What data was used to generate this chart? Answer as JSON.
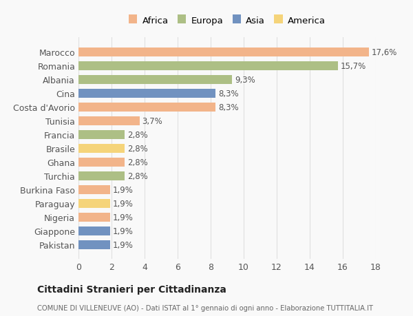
{
  "categories": [
    "Marocco",
    "Romania",
    "Albania",
    "Cina",
    "Costa d'Avorio",
    "Tunisia",
    "Francia",
    "Brasile",
    "Ghana",
    "Turchia",
    "Burkina Faso",
    "Paraguay",
    "Nigeria",
    "Giappone",
    "Pakistan"
  ],
  "values": [
    17.6,
    15.7,
    9.3,
    8.3,
    8.3,
    3.7,
    2.8,
    2.8,
    2.8,
    2.8,
    1.9,
    1.9,
    1.9,
    1.9,
    1.9
  ],
  "labels": [
    "17,6%",
    "15,7%",
    "9,3%",
    "8,3%",
    "8,3%",
    "3,7%",
    "2,8%",
    "2,8%",
    "2,8%",
    "2,8%",
    "1,9%",
    "1,9%",
    "1,9%",
    "1,9%",
    "1,9%"
  ],
  "continents": [
    "Africa",
    "Europa",
    "Europa",
    "Asia",
    "Africa",
    "Africa",
    "Europa",
    "America",
    "Africa",
    "Europa",
    "Africa",
    "America",
    "Africa",
    "Asia",
    "Asia"
  ],
  "colors": {
    "Africa": "#F2B48A",
    "Europa": "#ADBF85",
    "Asia": "#7192C0",
    "America": "#F5D47A"
  },
  "legend_order": [
    "Africa",
    "Europa",
    "Asia",
    "America"
  ],
  "xlim": [
    0,
    18
  ],
  "xticks": [
    0,
    2,
    4,
    6,
    8,
    10,
    12,
    14,
    16,
    18
  ],
  "title": "Cittadini Stranieri per Cittadinanza",
  "subtitle": "COMUNE DI VILLENEUVE (AO) - Dati ISTAT al 1° gennaio di ogni anno - Elaborazione TUTTITALIA.IT",
  "background_color": "#f9f9f9",
  "grid_color": "#e0e0e0"
}
